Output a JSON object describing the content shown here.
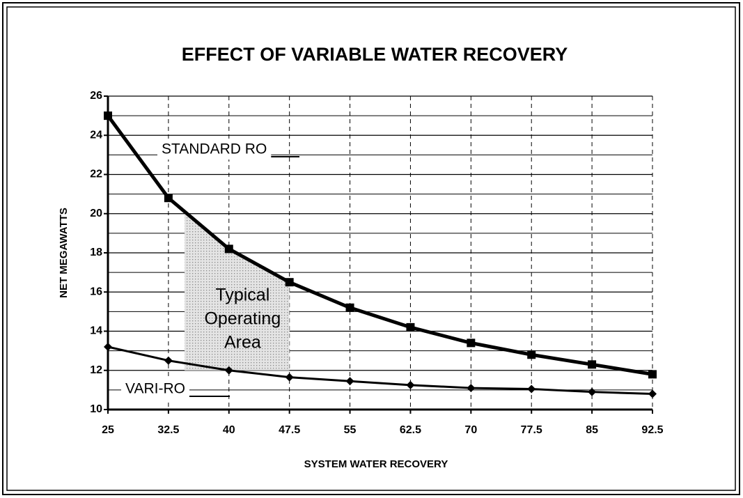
{
  "chart_data": {
    "type": "line",
    "title": "EFFECT OF VARIABLE WATER RECOVERY",
    "xlabel": "SYSTEM WATER RECOVERY",
    "ylabel": "NET MEGAWATTS",
    "x": [
      25,
      32.5,
      40,
      47.5,
      55,
      62.5,
      70,
      77.5,
      85,
      92.5
    ],
    "xlim": [
      25,
      92.5
    ],
    "xticks": [
      25,
      32.5,
      40,
      47.5,
      55,
      62.5,
      70,
      77.5,
      85,
      92.5
    ],
    "ylim": [
      10,
      26
    ],
    "yticks": [
      10,
      12,
      14,
      16,
      18,
      20,
      22,
      24,
      26
    ],
    "yminorticks": [
      11,
      13,
      15,
      17,
      19,
      21,
      23,
      25
    ],
    "grid": true,
    "series": [
      {
        "name": "STANDARD RO",
        "color": "#000000",
        "marker": "square",
        "values": [
          25,
          20.8,
          18.2,
          16.5,
          15.2,
          14.2,
          13.4,
          12.8,
          12.3,
          11.8
        ]
      },
      {
        "name": "VARI-RO",
        "color": "#000000",
        "marker": "diamond",
        "values": [
          13.2,
          12.5,
          12.0,
          11.65,
          11.45,
          11.25,
          11.1,
          11.05,
          10.9,
          10.8
        ]
      }
    ],
    "region": {
      "label": [
        "Typical",
        "Operating",
        "Area"
      ],
      "x": [
        34.5,
        47.5
      ],
      "y_bottom": 12
    }
  }
}
